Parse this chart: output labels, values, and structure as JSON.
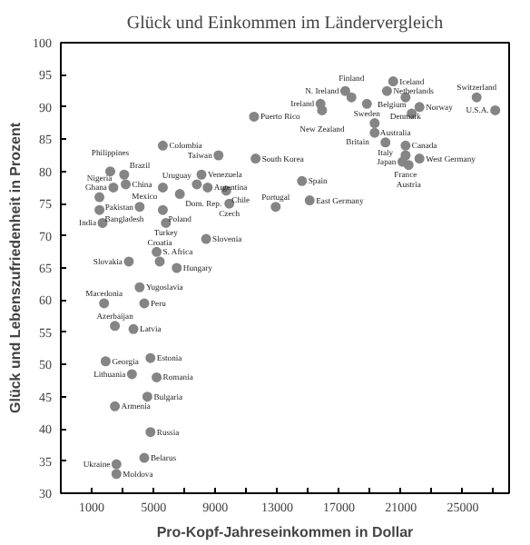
{
  "chart_data": {
    "type": "scatter",
    "title": "Glück und Einkommen im Ländervergleich",
    "xlabel": "Pro-Kopf-Jahreseinkommen in Dollar",
    "ylabel": "Glück und Lebenszufriedenheit in Prozent",
    "xlim": [
      -1000,
      28000
    ],
    "ylim": [
      30,
      100
    ],
    "xticks": [
      1000,
      {
        "value": 3000,
        "label": null
      },
      5000,
      {
        "value": 7000,
        "label": null
      },
      9000,
      {
        "value": 11000,
        "label": null
      },
      13000,
      {
        "value": 15000,
        "label": null
      },
      17000,
      {
        "value": 19000,
        "label": null
      },
      21000,
      {
        "value": 23000,
        "label": null
      },
      25000,
      {
        "value": 27000,
        "label": null
      }
    ],
    "yticks": [
      30,
      35,
      40,
      45,
      50,
      55,
      60,
      65,
      70,
      75,
      80,
      85,
      90,
      95,
      100
    ],
    "grid": false,
    "marker": "circle",
    "series": [
      {
        "color": "#858585",
        "x": [
          11500,
          11600,
          9200,
          5600,
          8100,
          7800,
          5600,
          3100,
          2200,
          2400,
          3200,
          1500,
          1500,
          1700,
          4100,
          6700,
          8500,
          9700,
          9900,
          5600,
          5800,
          8400,
          5200,
          3400,
          5400,
          6500,
          4100,
          12900,
          14600,
          15100,
          15800,
          17400,
          17800,
          15900,
          20100,
          20500,
          18800,
          21300,
          19300,
          22200,
          21700,
          25900,
          27100,
          19300,
          20000,
          21300,
          21300,
          21100,
          22200,
          21500,
          1800,
          4400,
          2500,
          3700,
          4800,
          1900,
          3600,
          5200,
          2500,
          4600,
          4800,
          2600,
          4400,
          2600
        ],
        "values": [
          88.5,
          82,
          82.5,
          84,
          79.5,
          78,
          77.5,
          79.5,
          80,
          77.5,
          78,
          76,
          74,
          72,
          74.5,
          76.5,
          77.5,
          77,
          75,
          74,
          72,
          69.5,
          67.5,
          66,
          66,
          65,
          62,
          74.5,
          78.5,
          75.5,
          90.5,
          92.5,
          91.5,
          89.5,
          92.5,
          94,
          90.5,
          91.5,
          87.5,
          90,
          89,
          91.5,
          89.5,
          86,
          84.5,
          84,
          82.5,
          81.5,
          82,
          81,
          59.5,
          59.5,
          56,
          55.5,
          51,
          50.5,
          48.5,
          48,
          43.5,
          45,
          39.5,
          34.5,
          35.5,
          33
        ]
      }
    ],
    "annotations": [
      {
        "text": "Puerto Rico",
        "x": 11500,
        "y": 88.5
      },
      {
        "text": "South Korea",
        "x": 11600,
        "y": 82
      },
      {
        "text": "Taiwan",
        "x": 9200,
        "y": 82.5
      },
      {
        "text": "Colombia",
        "x": 5600,
        "y": 84
      },
      {
        "text": "Venezuela",
        "x": 8100,
        "y": 79.5
      },
      {
        "text": "Uruguay",
        "x": 7800,
        "y": 78
      },
      {
        "text": "Mexico",
        "x": 5600,
        "y": 77.5
      },
      {
        "text": "Brazil",
        "x": 3100,
        "y": 79.5
      },
      {
        "text": "Philippines",
        "x": 2200,
        "y": 80
      },
      {
        "text": "Ghana",
        "x": 2400,
        "y": 77.5
      },
      {
        "text": "China",
        "x": 3200,
        "y": 78
      },
      {
        "text": "Nigeria",
        "x": 1500,
        "y": 76
      },
      {
        "text": "Bangladesh",
        "x": 1500,
        "y": 74
      },
      {
        "text": "India",
        "x": 1700,
        "y": 72
      },
      {
        "text": "Pakistan",
        "x": 4100,
        "y": 74.5
      },
      {
        "text": "Dom. Rep.",
        "x": 6700,
        "y": 76.5
      },
      {
        "text": "Argentina",
        "x": 8500,
        "y": 77.5
      },
      {
        "text": "Chile",
        "x": 9700,
        "y": 77
      },
      {
        "text": "Czech",
        "x": 9900,
        "y": 75
      },
      {
        "text": "Poland",
        "x": 5600,
        "y": 74
      },
      {
        "text": "Turkey",
        "x": 5800,
        "y": 72
      },
      {
        "text": "Slovenia",
        "x": 8400,
        "y": 69.5
      },
      {
        "text": "S. Africa",
        "x": 5200,
        "y": 67.5
      },
      {
        "text": "Slovakia",
        "x": 3400,
        "y": 66
      },
      {
        "text": "Croatia",
        "x": 5400,
        "y": 66
      },
      {
        "text": "Hungary",
        "x": 6500,
        "y": 65
      },
      {
        "text": "Yugoslavia",
        "x": 4100,
        "y": 62
      },
      {
        "text": "Portugal",
        "x": 12900,
        "y": 74.5
      },
      {
        "text": "Spain",
        "x": 14600,
        "y": 78.5
      },
      {
        "text": "East Germany",
        "x": 15100,
        "y": 75.5
      },
      {
        "text": "Ireland",
        "x": 15800,
        "y": 90.5
      },
      {
        "text": "N. Ireland",
        "x": 17400,
        "y": 92.5
      },
      {
        "text": "Finland",
        "x": 17800,
        "y": 91.5
      },
      {
        "text": "New Zealand",
        "x": 15900,
        "y": 89.5
      },
      {
        "text": "Netherlands",
        "x": 20100,
        "y": 92.5
      },
      {
        "text": "Iceland",
        "x": 20500,
        "y": 94
      },
      {
        "text": "Sweden",
        "x": 18800,
        "y": 90.5
      },
      {
        "text": "Denmark",
        "x": 21300,
        "y": 91.5
      },
      {
        "text": "Australia",
        "x": 19300,
        "y": 87.5
      },
      {
        "text": "Norway",
        "x": 22200,
        "y": 90
      },
      {
        "text": "Belgium",
        "x": 21700,
        "y": 89
      },
      {
        "text": "Switzerland",
        "x": 25900,
        "y": 91.5
      },
      {
        "text": "U.S.A.",
        "x": 27100,
        "y": 89.5
      },
      {
        "text": "Britain",
        "x": 19300,
        "y": 86
      },
      {
        "text": "Italy",
        "x": 20000,
        "y": 84.5
      },
      {
        "text": "Canada",
        "x": 21300,
        "y": 84
      },
      {
        "text": "France",
        "x": 21300,
        "y": 82.5
      },
      {
        "text": "Japan",
        "x": 21100,
        "y": 81.5
      },
      {
        "text": "West Germany",
        "x": 22200,
        "y": 82
      },
      {
        "text": "Austria",
        "x": 21500,
        "y": 81
      },
      {
        "text": "Macedonia",
        "x": 1800,
        "y": 59.5
      },
      {
        "text": "Peru",
        "x": 4400,
        "y": 59.5
      },
      {
        "text": "Azerbaijan",
        "x": 2500,
        "y": 56
      },
      {
        "text": "Latvia",
        "x": 3700,
        "y": 55.5
      },
      {
        "text": "Estonia",
        "x": 4800,
        "y": 51
      },
      {
        "text": "Georgia",
        "x": 1900,
        "y": 50.5
      },
      {
        "text": "Lithuania",
        "x": 3600,
        "y": 48.5
      },
      {
        "text": "Romania",
        "x": 5200,
        "y": 48
      },
      {
        "text": "Armenia",
        "x": 2500,
        "y": 43.5
      },
      {
        "text": "Bulgaria",
        "x": 4600,
        "y": 45
      },
      {
        "text": "Russia",
        "x": 4800,
        "y": 39.5
      },
      {
        "text": "Ukraine",
        "x": 2600,
        "y": 34.5
      },
      {
        "text": "Belarus",
        "x": 4400,
        "y": 35.5
      },
      {
        "text": "Moldova",
        "x": 2600,
        "y": 33
      }
    ]
  }
}
